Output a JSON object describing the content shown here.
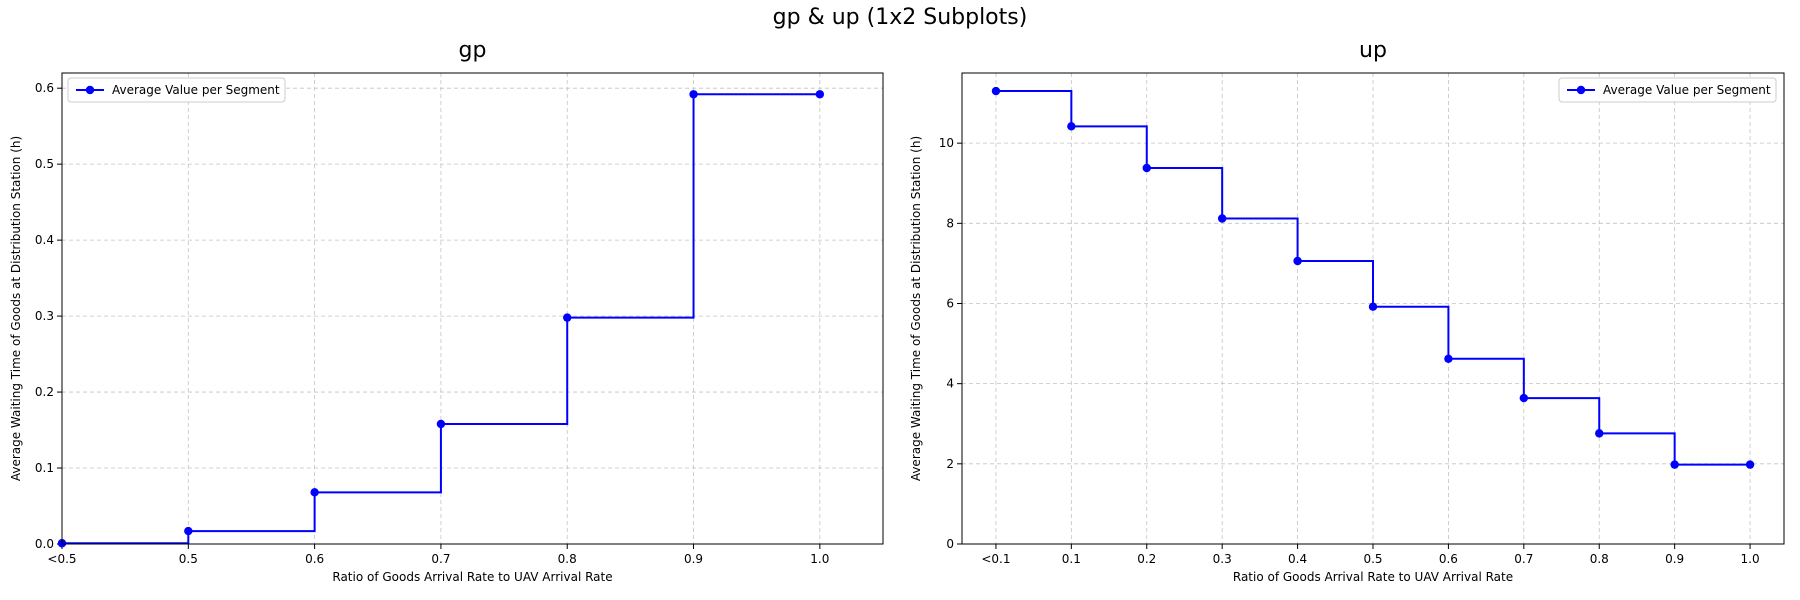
{
  "figure": {
    "suptitle": "gp & up (1x2 Subplots)"
  },
  "chart_data": [
    {
      "type": "line",
      "step": "post",
      "title": "gp",
      "xlabel": "Ratio of Goods Arrival Rate to UAV Arrival Rate",
      "ylabel": "Average Waiting Time of Goods at Distribution Station (h)",
      "xlim": [
        0.4,
        1.05
      ],
      "ylim": [
        0.0,
        0.62
      ],
      "grid": true,
      "legend_position": "upper left",
      "x_tick_values": [
        0.4,
        0.5,
        0.6,
        0.7,
        0.8,
        0.9,
        1.0
      ],
      "x_tick_labels": [
        "<0.5",
        "0.5",
        "0.6",
        "0.7",
        "0.8",
        "0.9",
        "1.0"
      ],
      "y_tick_values": [
        0.0,
        0.1,
        0.2,
        0.3,
        0.4,
        0.5,
        0.6
      ],
      "y_tick_labels": [
        "0.0",
        "0.1",
        "0.2",
        "0.3",
        "0.4",
        "0.5",
        "0.6"
      ],
      "series": [
        {
          "name": "Average Value per Segment",
          "color": "#0000ff",
          "x": [
            0.4,
            0.5,
            0.6,
            0.7,
            0.8,
            0.9,
            1.0
          ],
          "values": [
            0.001,
            0.017,
            0.068,
            0.158,
            0.298,
            0.592,
            0.592
          ]
        }
      ]
    },
    {
      "type": "line",
      "step": "post",
      "title": "up",
      "xlabel": "Ratio of Goods Arrival Rate to UAV Arrival Rate",
      "ylabel": "Average Waiting Time of Goods at Distribution Station (h)",
      "xlim": [
        -0.045,
        1.045
      ],
      "ylim": [
        0,
        11.75
      ],
      "grid": true,
      "legend_position": "upper right",
      "x_tick_values": [
        0.0,
        0.1,
        0.2,
        0.3,
        0.4,
        0.5,
        0.6,
        0.7,
        0.8,
        0.9,
        1.0
      ],
      "x_tick_labels": [
        "<0.1",
        "0.1",
        "0.2",
        "0.3",
        "0.4",
        "0.5",
        "0.6",
        "0.7",
        "0.8",
        "0.9",
        "1.0"
      ],
      "y_tick_values": [
        0,
        2,
        4,
        6,
        8,
        10
      ],
      "y_tick_labels": [
        "0",
        "2",
        "4",
        "6",
        "8",
        "10"
      ],
      "series": [
        {
          "name": "Average Value per Segment",
          "color": "#0000ff",
          "x": [
            0.0,
            0.1,
            0.2,
            0.3,
            0.4,
            0.5,
            0.6,
            0.7,
            0.8,
            0.9,
            1.0
          ],
          "values": [
            11.3,
            10.42,
            9.38,
            8.12,
            7.06,
            5.92,
            4.62,
            3.64,
            2.76,
            1.98,
            1.98
          ]
        }
      ]
    }
  ]
}
